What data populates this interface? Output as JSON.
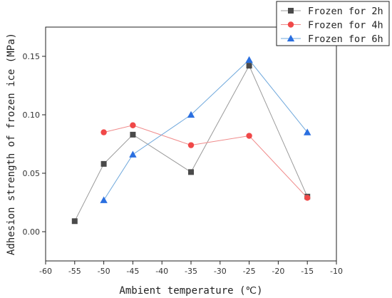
{
  "chart_data": {
    "type": "line",
    "xlabel": "Ambient temperature (℃)",
    "ylabel": "Adhesion strength of frozen ice (MPa)",
    "xlim": [
      -60,
      -10
    ],
    "ylim": [
      -0.025,
      0.175
    ],
    "x_ticks": [
      -60,
      -55,
      -50,
      -45,
      -40,
      -35,
      -30,
      -25,
      -20,
      -15,
      -10
    ],
    "y_ticks": [
      0.0,
      0.05,
      0.1,
      0.15
    ],
    "y_tick_labels": [
      "0.00",
      "0.05",
      "0.10",
      "0.15"
    ],
    "grid": false,
    "legend_position": "top-right",
    "series": [
      {
        "name": "Frozen for 2h",
        "color": "#4a4a4a",
        "line_color": "#9a9a9a",
        "marker": "square",
        "x": [
          -55,
          -50,
          -45,
          -35,
          -25,
          -15
        ],
        "y": [
          0.009,
          0.058,
          0.083,
          0.051,
          0.142,
          0.03
        ]
      },
      {
        "name": "Frozen for 4h",
        "color": "#f04848",
        "line_color": "#f08a8a",
        "marker": "circle",
        "x": [
          -50,
          -45,
          -35,
          -25,
          -15
        ],
        "y": [
          0.085,
          0.091,
          0.074,
          0.082,
          0.029
        ]
      },
      {
        "name": "Frozen for 6h",
        "color": "#2a6fe0",
        "line_color": "#6fa8dc",
        "marker": "triangle",
        "x": [
          -50,
          -45,
          -35,
          -25,
          -15
        ],
        "y": [
          0.027,
          0.066,
          0.1,
          0.147,
          0.085
        ]
      }
    ]
  }
}
